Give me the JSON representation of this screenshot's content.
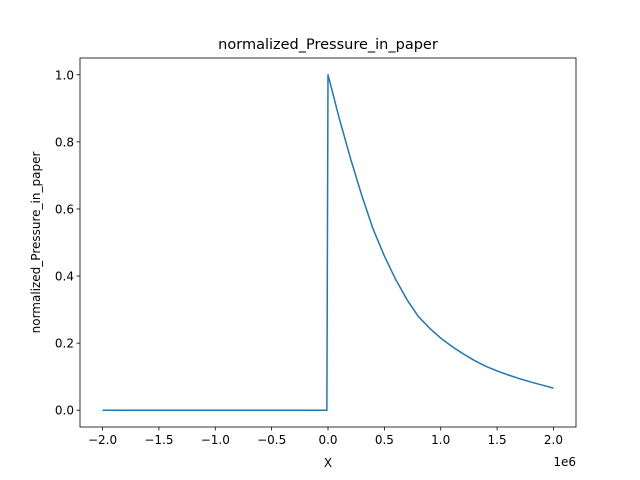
{
  "chart_data": {
    "type": "line",
    "title": "normalized_Pressure_in_paper",
    "xlabel": "X",
    "ylabel": "normalized_Pressure_in_paper",
    "x_offset_label": "1e6",
    "xlim": [
      -2200000,
      2200000
    ],
    "ylim": [
      -0.05,
      1.05
    ],
    "x_ticks": [
      -2000000,
      -1500000,
      -1000000,
      -500000,
      0,
      500000,
      1000000,
      1500000,
      2000000
    ],
    "x_tick_labels": [
      "−2.0",
      "−1.5",
      "−1.0",
      "−0.5",
      "0.0",
      "0.5",
      "1.0",
      "1.5",
      "2.0"
    ],
    "y_ticks": [
      0.0,
      0.2,
      0.4,
      0.6,
      0.8,
      1.0
    ],
    "y_tick_labels": [
      "0.0",
      "0.2",
      "0.4",
      "0.6",
      "0.8",
      "1.0"
    ],
    "grid": false,
    "legend": "none",
    "series": [
      {
        "color": "#1f77b4",
        "x": [
          -2000000,
          -1500000,
          -1000000,
          -500000,
          -10000,
          0,
          100000,
          200000,
          300000,
          400000,
          500000,
          600000,
          700000,
          800000,
          900000,
          1000000,
          1100000,
          1200000,
          1300000,
          1400000,
          1500000,
          1600000,
          1700000,
          1800000,
          1900000,
          2000000
        ],
        "y": [
          0.0,
          0.0,
          0.0,
          0.0,
          0.0,
          1.0,
          0.87,
          0.75,
          0.64,
          0.54,
          0.46,
          0.39,
          0.33,
          0.28,
          0.245,
          0.215,
          0.19,
          0.168,
          0.148,
          0.131,
          0.117,
          0.105,
          0.094,
          0.084,
          0.075,
          0.066
        ]
      }
    ]
  }
}
